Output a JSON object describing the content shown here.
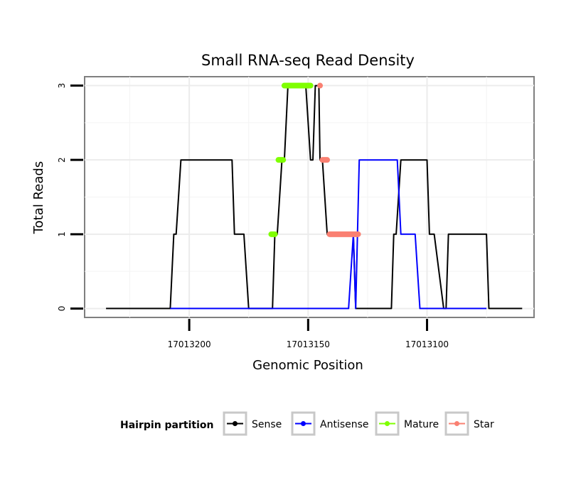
{
  "chart_data": {
    "type": "line",
    "title": "Small RNA-seq Read Density",
    "xlabel": "Genomic Position",
    "ylabel": "Total Reads",
    "x_reversed": true,
    "xlim": [
      17013244,
      17013055
    ],
    "ylim": [
      -0.12,
      3.12
    ],
    "x_ticks": [
      17013200,
      17013150,
      17013100
    ],
    "x_tick_labels": [
      "17013200",
      "17013150",
      "17013100"
    ],
    "y_ticks": [
      0,
      1,
      2,
      3
    ],
    "y_tick_labels": [
      "0",
      "1",
      "2",
      "3"
    ],
    "grid": true,
    "legend": {
      "title": "Hairpin partition",
      "position": "bottom",
      "entries": [
        {
          "name": "Sense",
          "color": "#000000"
        },
        {
          "name": "Antisense",
          "color": "#0000ff"
        },
        {
          "name": "Mature",
          "color": "#7fff00"
        },
        {
          "name": "Star",
          "color": "#fa8072"
        }
      ]
    },
    "series": [
      {
        "name": "Sense",
        "kind": "line",
        "color": "#000000",
        "x": [
          17013235,
          17013208,
          17013206.5,
          17013205.5,
          17013203.5,
          17013182,
          17013181,
          17013177,
          17013175,
          17013172,
          17013165,
          17013164,
          17013163,
          17013161,
          17013160,
          17013158.5,
          17013156.5,
          17013156,
          17013152,
          17013151,
          17013149,
          17013148,
          17013147,
          17013145.5,
          17013145,
          17013144,
          17013142,
          17013141,
          17013140,
          17013138,
          17013131,
          17013130,
          17013129,
          17013127.5,
          17013126,
          17013115,
          17013114,
          17013113,
          17013111,
          17013110,
          17013109,
          17013103,
          17013102,
          17013100,
          17013099,
          17013097,
          17013093,
          17013092,
          17013091,
          17013089,
          17013075,
          17013074,
          17013060
        ],
        "y": [
          0,
          0,
          1,
          1,
          2,
          2,
          1,
          1,
          0,
          0,
          0,
          1,
          1,
          2,
          2,
          3,
          3,
          3,
          3,
          3,
          2,
          2,
          3,
          3,
          2,
          2,
          1,
          1,
          1,
          1,
          1,
          0,
          0,
          0,
          0,
          0,
          1,
          1,
          2,
          2,
          2,
          2,
          2,
          2,
          1,
          1,
          0,
          0,
          1,
          1,
          1,
          0,
          0
        ]
      },
      {
        "name": "Antisense",
        "kind": "line",
        "color": "#0000ff",
        "x": [
          17013208,
          17013133,
          17013131,
          17013130,
          17013128.5,
          17013128,
          17013112.5,
          17013111,
          17013109,
          17013105,
          17013103,
          17013075
        ],
        "y": [
          0,
          0,
          1,
          0,
          2,
          2,
          2,
          1,
          1,
          1,
          0,
          0
        ]
      },
      {
        "name": "Mature",
        "kind": "segments",
        "color": "#7fff00",
        "segments": [
          {
            "x": [
              17013165.5,
              17013164
            ],
            "y": [
              1,
              1
            ]
          },
          {
            "x": [
              17013162.5,
              17013160.5
            ],
            "y": [
              2,
              2
            ]
          },
          {
            "x": [
              17013160,
              17013149
            ],
            "y": [
              3,
              3
            ]
          }
        ]
      },
      {
        "name": "Star",
        "kind": "segments",
        "color": "#fa8072",
        "segments": [
          {
            "x": [
              17013145,
              17013145
            ],
            "y": [
              3,
              3
            ]
          },
          {
            "x": [
              17013144,
              17013142
            ],
            "y": [
              2,
              2
            ]
          },
          {
            "x": [
              17013141,
              17013129
            ],
            "y": [
              1,
              1
            ]
          }
        ]
      }
    ]
  }
}
